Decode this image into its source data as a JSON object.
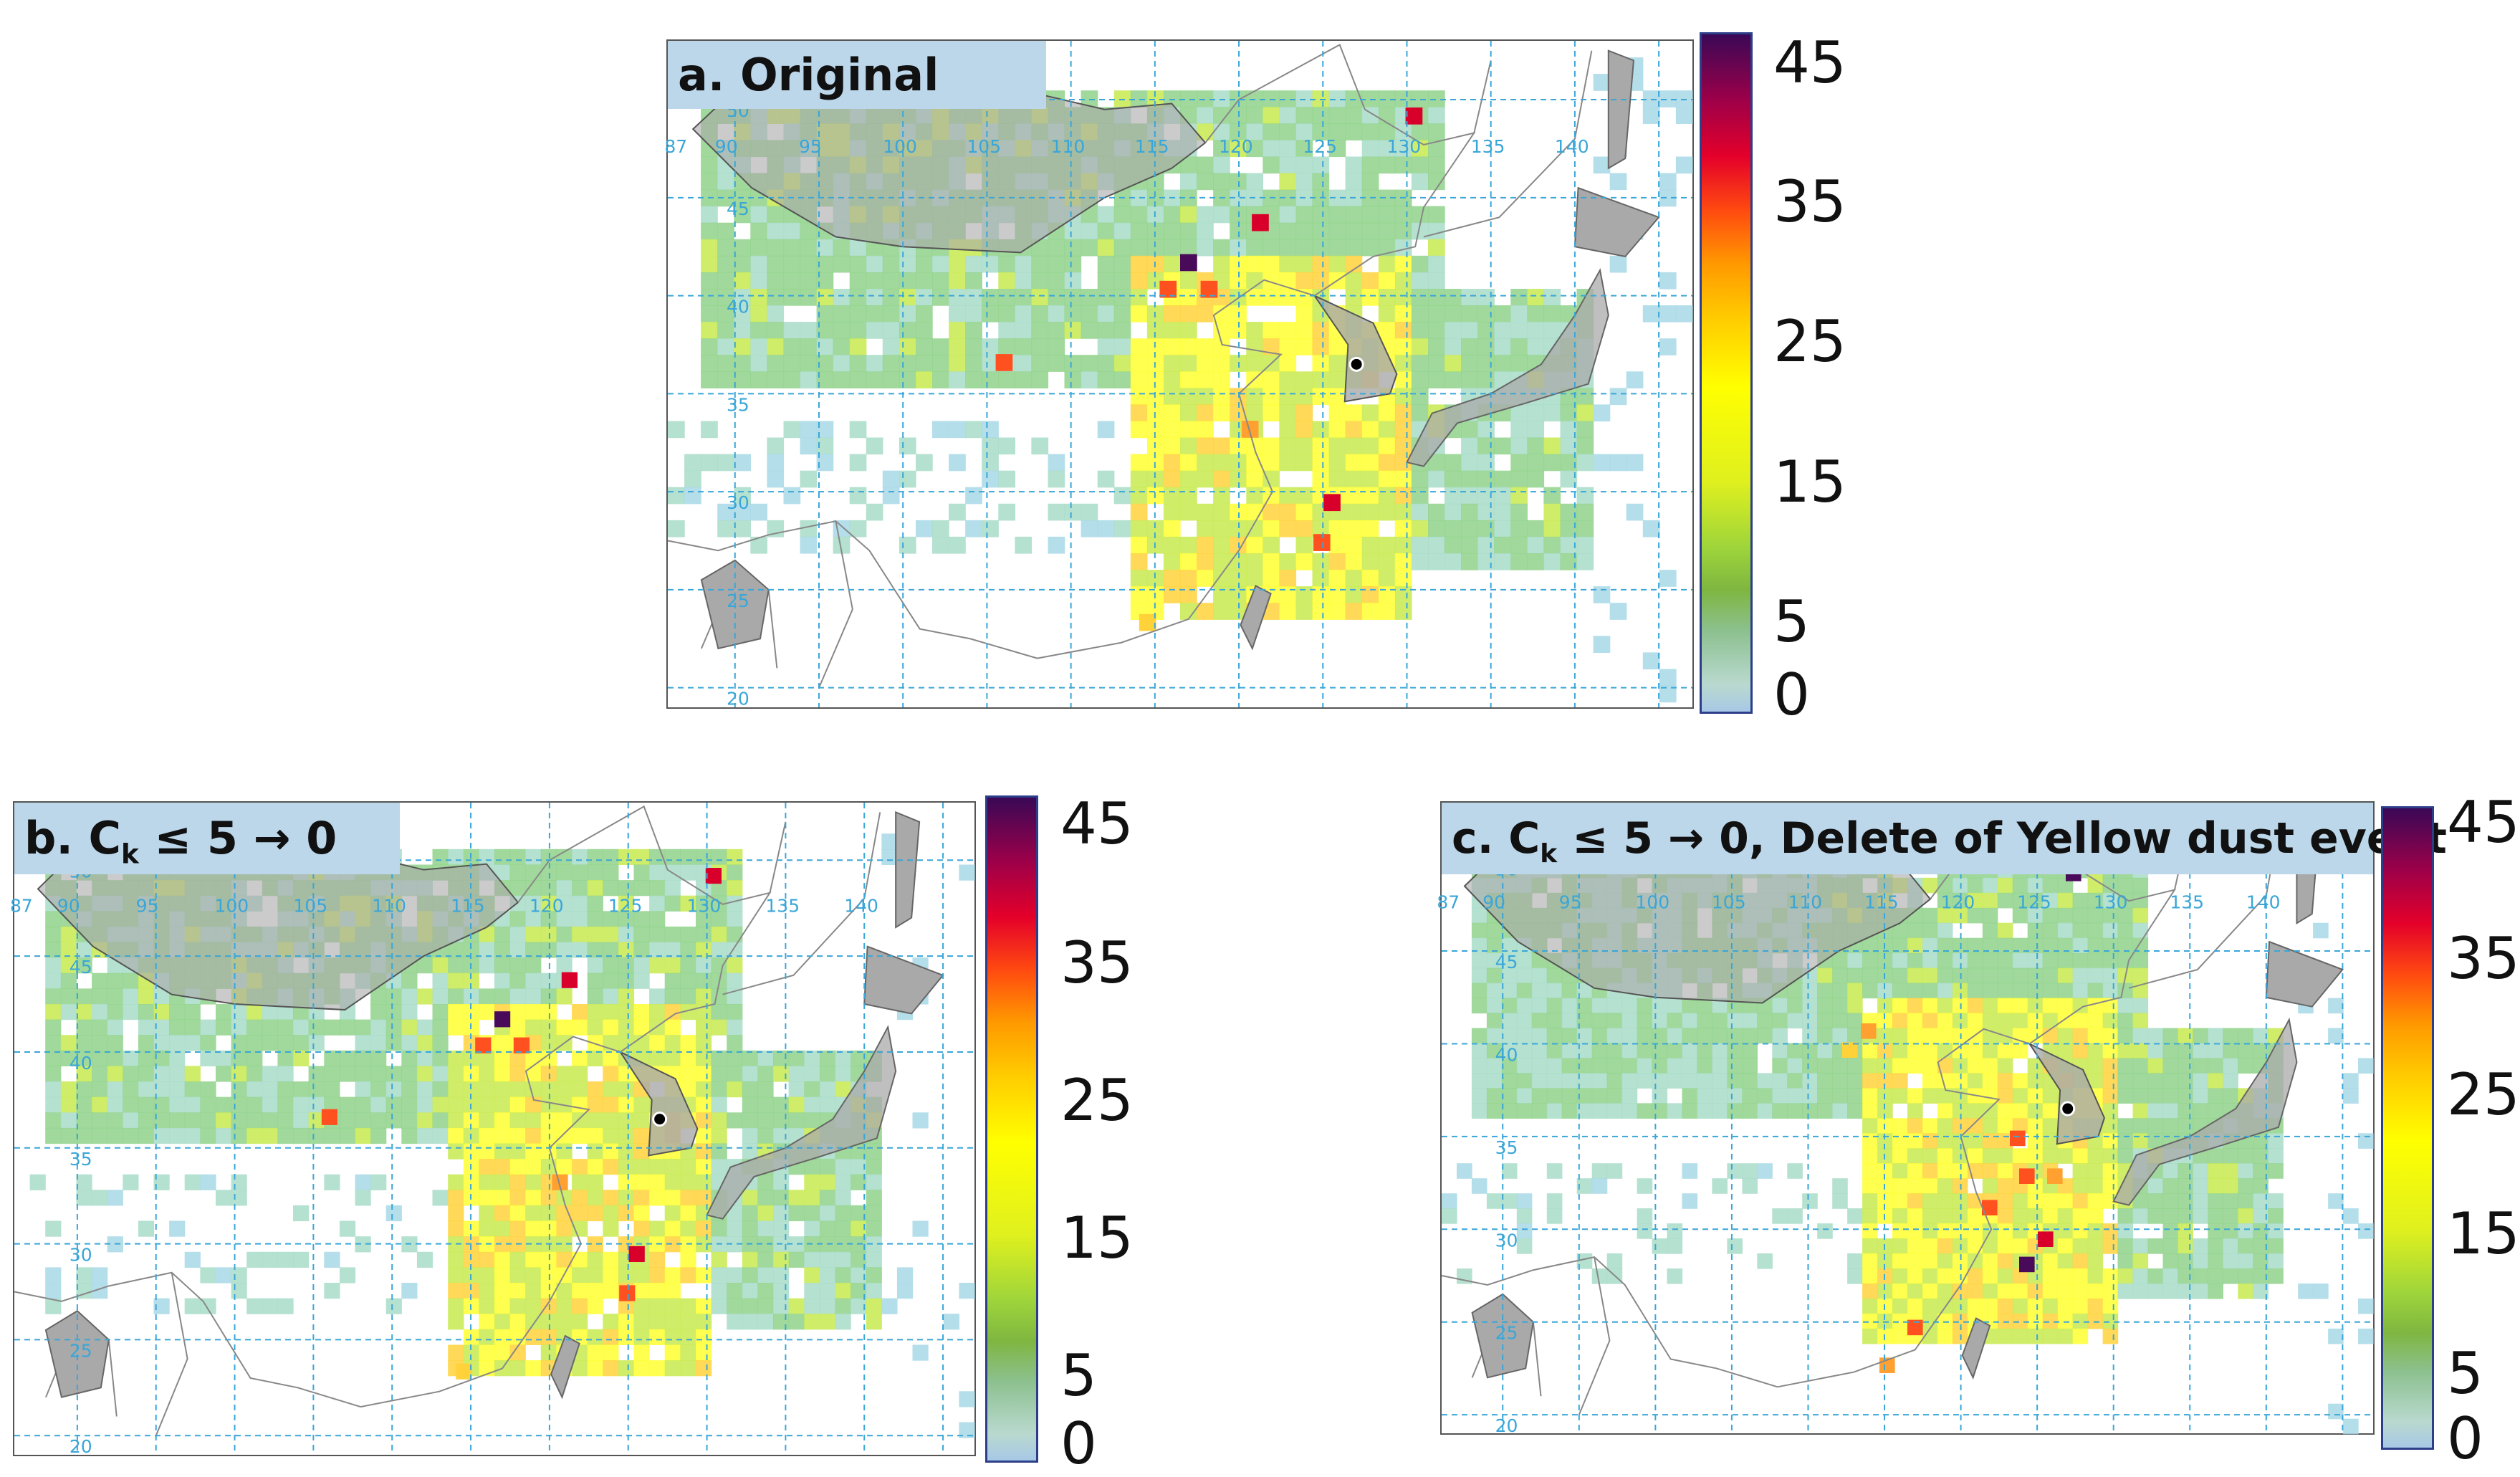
{
  "panels": [
    {
      "id": "a",
      "title_main": "a. Original",
      "title_sub": "",
      "title_rest": ""
    },
    {
      "id": "b",
      "title_main": "b. C",
      "title_sub": "k",
      "title_rest": " ≤ 5 → 0"
    },
    {
      "id": "c",
      "title_main": "c. C",
      "title_sub": "k",
      "title_rest": " ≤ 5 → 0, Delete of Yellow dust event"
    }
  ],
  "longitude_labels": [
    "87",
    "90",
    "95",
    "100",
    "105",
    "110",
    "115",
    "120",
    "125",
    "130",
    "135",
    "140"
  ],
  "latitude_labels": [
    "50",
    "45",
    "40",
    "35",
    "30",
    "25",
    "20"
  ],
  "colorbar": {
    "ticks": [
      "45",
      "35",
      "25",
      "15",
      "5",
      "0"
    ],
    "colors": [
      "#a7c8e6",
      "#8cc08e",
      "#9dd43b",
      "#ffff00",
      "#ff9a00",
      "#e4002a",
      "#3a0856"
    ]
  },
  "map_colors": {
    "land": "#ffffff",
    "mongolia_korea": "#a9a9a9",
    "grid": "#3aa6d8",
    "coast": "#888888"
  }
}
